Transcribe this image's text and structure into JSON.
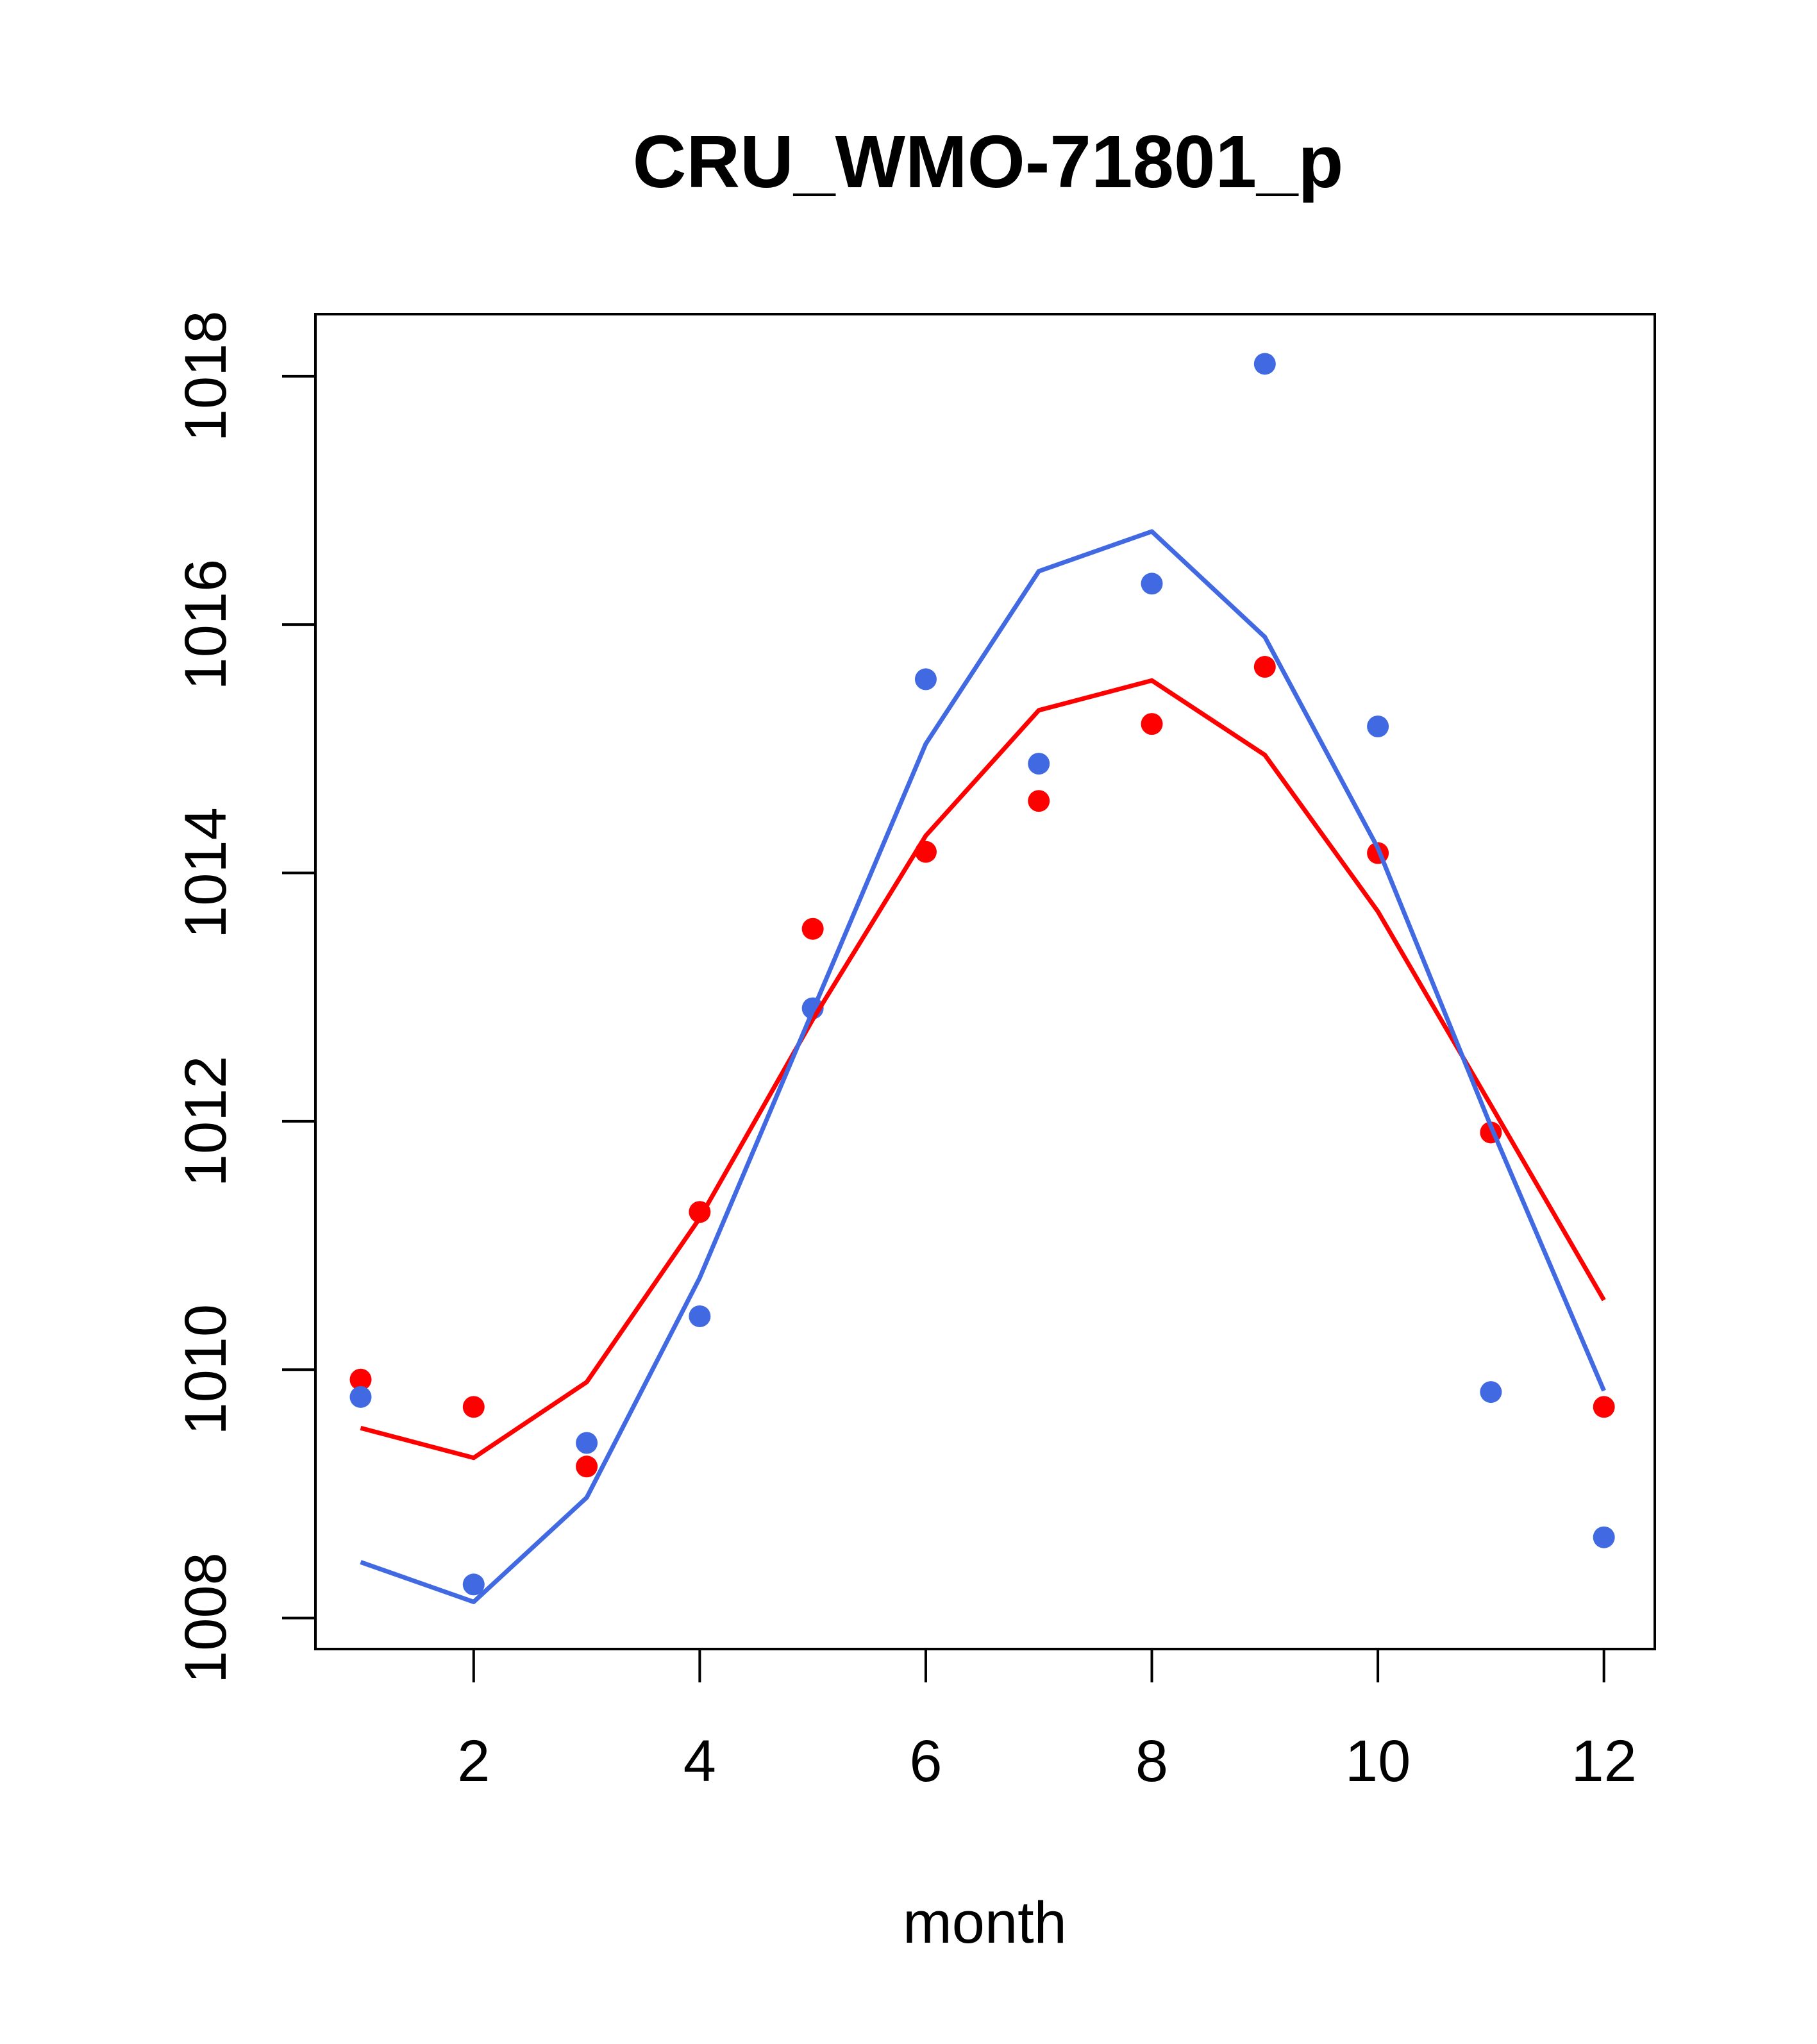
{
  "chart_data": {
    "type": "scatter",
    "title": "CRU_WMO-71801_p",
    "xlabel": "month",
    "ylabel": "",
    "xlim": [
      0.6,
      12.45
    ],
    "ylim": [
      1007.75,
      1018.5
    ],
    "xticks": [
      2,
      4,
      6,
      8,
      10,
      12
    ],
    "yticks": [
      1008,
      1010,
      1012,
      1014,
      1016,
      1018
    ],
    "grid": false,
    "legend": "none",
    "series": [
      {
        "name": "red points",
        "kind": "points",
        "color": "#ff0000",
        "x": [
          1,
          2,
          3,
          4,
          5,
          6,
          7,
          8,
          9,
          10,
          11,
          12
        ],
        "y": [
          1009.92,
          1009.7,
          1009.22,
          1011.27,
          1013.55,
          1014.17,
          1014.58,
          1015.2,
          1015.66,
          1014.16,
          1011.91,
          1009.7
        ]
      },
      {
        "name": "blue points",
        "kind": "points",
        "color": "#4169e1",
        "x": [
          1,
          2,
          3,
          4,
          5,
          6,
          7,
          8,
          9,
          10,
          11,
          12
        ],
        "y": [
          1009.78,
          1008.27,
          1009.41,
          1010.43,
          1012.91,
          1015.56,
          1014.88,
          1016.33,
          1018.1,
          1015.18,
          1009.82,
          1008.65
        ]
      },
      {
        "name": "red fit",
        "kind": "line",
        "color": "#ff0000",
        "x": [
          1,
          2,
          3,
          4,
          5,
          6,
          7,
          8,
          9,
          10,
          11,
          12
        ],
        "y": [
          1009.53,
          1009.29,
          1009.9,
          1011.22,
          1012.82,
          1014.3,
          1015.31,
          1015.55,
          1014.95,
          1013.69,
          1012.13,
          1010.56
        ]
      },
      {
        "name": "blue fit",
        "kind": "line",
        "color": "#4169e1",
        "x": [
          1,
          2,
          3,
          4,
          5,
          6,
          7,
          8,
          9,
          10,
          11,
          12
        ],
        "y": [
          1008.45,
          1008.13,
          1008.97,
          1010.74,
          1012.89,
          1015.04,
          1016.43,
          1016.75,
          1015.9,
          1014.2,
          1011.96,
          1009.83
        ]
      }
    ]
  }
}
